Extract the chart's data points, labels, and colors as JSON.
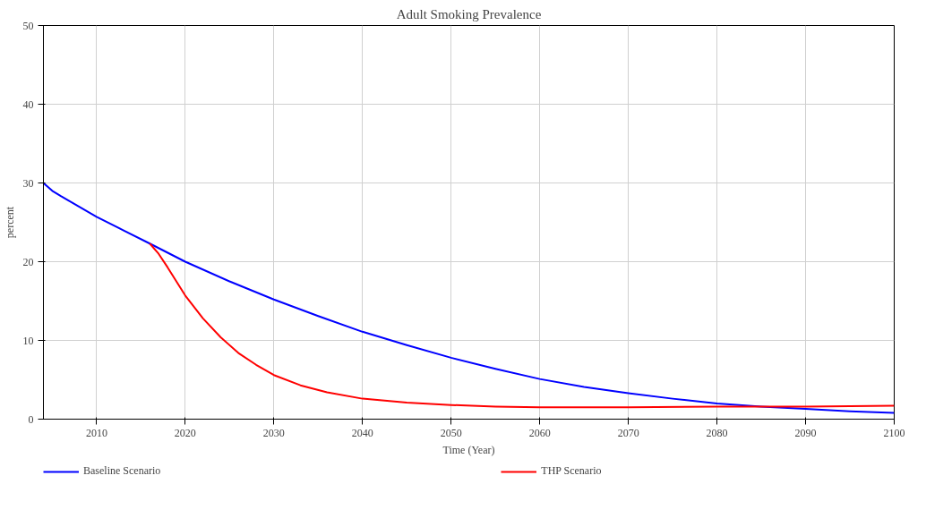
{
  "chart_data": {
    "type": "line",
    "title": "Adult Smoking Prevalence",
    "xlabel": "Time (Year)",
    "ylabel": "percent",
    "xlim": [
      2004,
      2100
    ],
    "xticks": [
      2010,
      2020,
      2030,
      2040,
      2050,
      2060,
      2070,
      2080,
      2090,
      2100
    ],
    "ylim": [
      0,
      50
    ],
    "yticks": [
      0,
      10,
      20,
      30,
      40,
      50
    ],
    "grid": true,
    "legend": "bottom",
    "marker": "none",
    "line_style": "solid",
    "series": [
      {
        "name": "Baseline Scenario",
        "color": "#0000ff",
        "x": [
          2004,
          2005,
          2006,
          2008,
          2010,
          2013,
          2016,
          2020,
          2025,
          2030,
          2035,
          2040,
          2045,
          2050,
          2055,
          2060,
          2065,
          2070,
          2075,
          2080,
          2085,
          2090,
          2095,
          2100
        ],
        "values": [
          30.0,
          29.0,
          28.3,
          27.0,
          25.7,
          24.0,
          22.3,
          20.0,
          17.5,
          15.2,
          13.1,
          11.1,
          9.4,
          7.8,
          6.4,
          5.1,
          4.1,
          3.3,
          2.6,
          2.0,
          1.6,
          1.3,
          1.0,
          0.8
        ]
      },
      {
        "name": "THP Scenario",
        "color": "#ff0000",
        "x": [
          2016,
          2017,
          2018,
          2020,
          2022,
          2024,
          2026,
          2028,
          2030,
          2033,
          2036,
          2040,
          2045,
          2050,
          2055,
          2060,
          2070,
          2080,
          2090,
          2100
        ],
        "values": [
          22.3,
          21.0,
          19.3,
          15.7,
          12.8,
          10.4,
          8.4,
          6.9,
          5.6,
          4.3,
          3.4,
          2.6,
          2.1,
          1.8,
          1.6,
          1.5,
          1.5,
          1.6,
          1.6,
          1.7
        ]
      }
    ]
  }
}
